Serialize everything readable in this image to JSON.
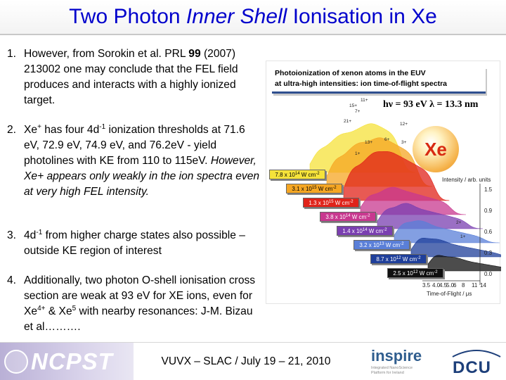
{
  "title": {
    "part1": "Two Photon ",
    "italic": "Inner Shell",
    "part2": " Ionisation in Xe"
  },
  "items": [
    {
      "number": "1.",
      "line1": "However, from Sorokin et al. PRL ",
      "bold": "99",
      "line2": " (2007) 213002 one may conclude that the FEL field produces and interacts with a highly ionized target."
    },
    {
      "number": "2.",
      "a": "Xe",
      "a_sup": "+",
      "b": " has four 4d",
      "b_sup": "-1",
      "c": " ionization thresholds at 71.6 eV, 72.9 eV, 74.9 eV, and 76.2eV - yield photolines with KE from 110 to 115eV. ",
      "italic": "However, Xe+ appears only weakly in the ion spectra even at very high FEL intensity."
    },
    {
      "number": "3.",
      "a": "4d",
      "a_sup": "-1",
      "b": " from higher charge states also possible – outside KE region of interest"
    },
    {
      "number": "4.",
      "a": "Additionally, two photon O-shell ionisation cross section are weak at 93 eV for XE ions, even for Xe",
      "a_sup": "4+",
      "b": " & Xe",
      "b_sup": "5",
      "c": " with nearby resonances: J-M. Bizau et al………."
    }
  ],
  "figure": {
    "title_line1": "Photoionization of xenon atoms in the EUV",
    "title_line2": "at ultra-high intensities: ion time-of-flight spectra",
    "energy": "hν = 93 eV   λ = 13.3 nm",
    "element": "Xe",
    "y_label": "Intensity / arb. units",
    "x_label": "Time-of-Flight / μs",
    "x_ticks": [
      "3.5",
      "4.0",
      "4.5",
      "5.0",
      "6",
      "8",
      "11",
      "14"
    ],
    "y_ticks": [
      "1.5",
      "0.9",
      "0.6",
      "0.3",
      "0.0"
    ],
    "charge_labels": [
      "11+",
      "15+",
      "7+",
      "21+",
      "12+",
      "13+",
      "6+",
      "3+",
      "1+",
      "2+",
      "1+"
    ],
    "intensities": [
      {
        "text": "7.8 x 10",
        "exp": "14",
        "unit": " W cm",
        "usup": "-2",
        "color": "#f5e23a",
        "text_color": "#000000"
      },
      {
        "text": "3.1 x 10",
        "exp": "15",
        "unit": " W cm",
        "usup": "-2",
        "color": "#f5a623",
        "text_color": "#000000"
      },
      {
        "text": "1.3 x 10",
        "exp": "15",
        "unit": " W cm",
        "usup": "-2",
        "color": "#e0231a",
        "text_color": "#ffffff"
      },
      {
        "text": "3.8 x 10",
        "exp": "14",
        "unit": " W cm",
        "usup": "-2",
        "color": "#c8388f",
        "text_color": "#ffffff"
      },
      {
        "text": "1.4 x 10",
        "exp": "14",
        "unit": " W cm",
        "usup": "-2",
        "color": "#7a3fb0",
        "text_color": "#ffffff"
      },
      {
        "text": "3.2 x 10",
        "exp": "13",
        "unit": " W cm",
        "usup": "-2",
        "color": "#5a7fd8",
        "text_color": "#ffffff"
      },
      {
        "text": "8.7 x 10",
        "exp": "12",
        "unit": " W cm",
        "usup": "-2",
        "color": "#1f3f9a",
        "text_color": "#ffffff"
      },
      {
        "text": "2.5 x 10",
        "exp": "12",
        "unit": " W cm",
        "usup": "-2",
        "color": "#101010",
        "text_color": "#ffffff"
      }
    ],
    "colors": [
      "#f5e23a",
      "#f5a623",
      "#e0231a",
      "#c8388f",
      "#7a3fb0",
      "#5a7fd8",
      "#1f3f9a",
      "#101010"
    ]
  },
  "footer": {
    "logo_left": "NCPST",
    "center": "VUVX – SLAC / July 19 – 21, 2010",
    "logo_inspire": "inspire",
    "inspire_sub": "Integrated NanoScience Platform for Ireland",
    "logo_dcu": "DCU"
  }
}
